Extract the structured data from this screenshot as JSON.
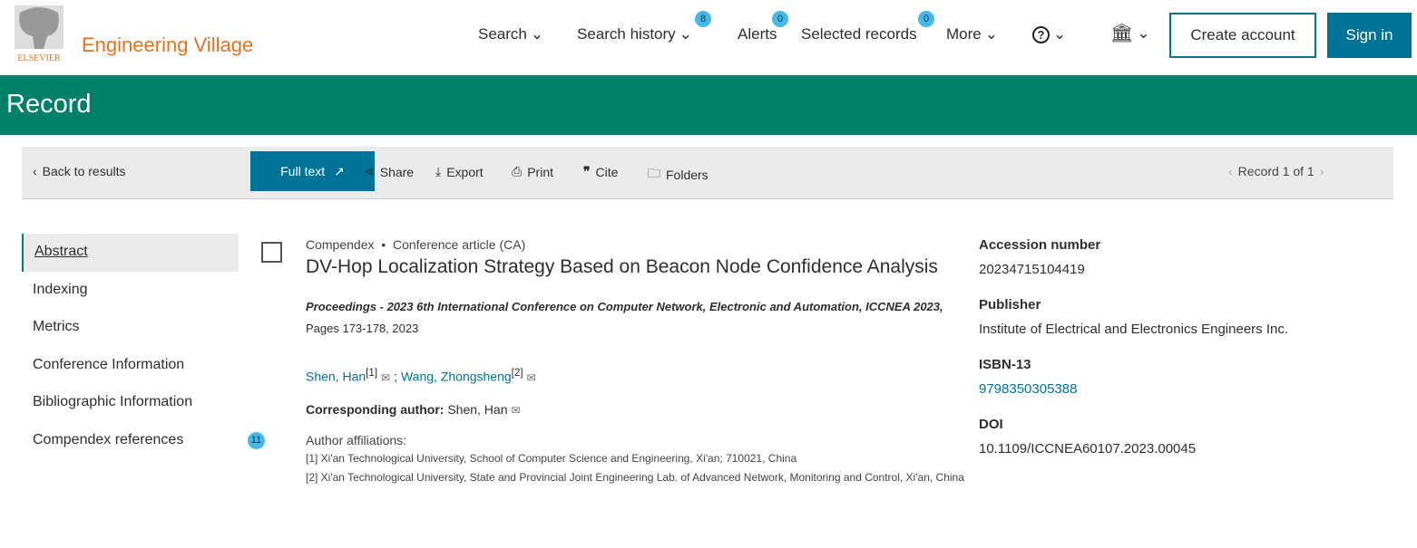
{
  "header": {
    "brand": "Engineering Village",
    "logo_text": "ELSEVIER",
    "nav": [
      {
        "label": "Search"
      },
      {
        "label": "Search history",
        "badge": "8"
      },
      {
        "label": "Alerts",
        "badge": "0"
      },
      {
        "label": "Selected records",
        "badge": "0"
      },
      {
        "label": "More"
      }
    ],
    "create_account": "Create account",
    "sign_in": "Sign in"
  },
  "page_title": "Record",
  "toolbar": {
    "back": "Back to results",
    "full_text": "Full text",
    "share": "Share",
    "export": "Export",
    "print": "Print",
    "cite": "Cite",
    "folders": "Folders",
    "record_nav": "Record 1 of 1"
  },
  "sidebar": {
    "items": [
      {
        "label": "Abstract"
      },
      {
        "label": "Indexing"
      },
      {
        "label": "Metrics"
      },
      {
        "label": "Conference Information"
      },
      {
        "label": "Bibliographic Information"
      },
      {
        "label": "Compendex references",
        "count": "11"
      }
    ]
  },
  "record": {
    "database": "Compendex",
    "doc_type": "Conference article (CA)",
    "title": "DV-Hop Localization Strategy Based on Beacon Node Confidence Analysis",
    "source": "Proceedings - 2023 6th International Conference on Computer Network, Electronic and Automation, ICCNEA 2023,",
    "pages": " Pages 173-178, 2023",
    "authors": [
      {
        "name": "Shen, Han",
        "ref": "[1]"
      },
      {
        "name": "Wang, Zhongsheng",
        "ref": "[2]"
      }
    ],
    "corresponding_label": "Corresponding author:",
    "corresponding": " Shen, Han",
    "affiliations_label": "Author affiliations:",
    "affiliations": [
      "[1] Xi'an Technological University, School of Computer Science and Engineering, Xi'an; 710021, China",
      "[2] Xi'an Technological University, State and Provincial Joint Engineering Lab. of Advanced Network, Monitoring and Control, Xi'an, China"
    ]
  },
  "details": {
    "accession_label": "Accession number",
    "accession": "20234715104419",
    "publisher_label": "Publisher",
    "publisher": "Institute of Electrical and Electronics Engineers Inc.",
    "isbn_label": "ISBN-13",
    "isbn": "9798350305388",
    "doi_label": "DOI",
    "doi": "10.1109/ICCNEA60107.2023.00045"
  }
}
